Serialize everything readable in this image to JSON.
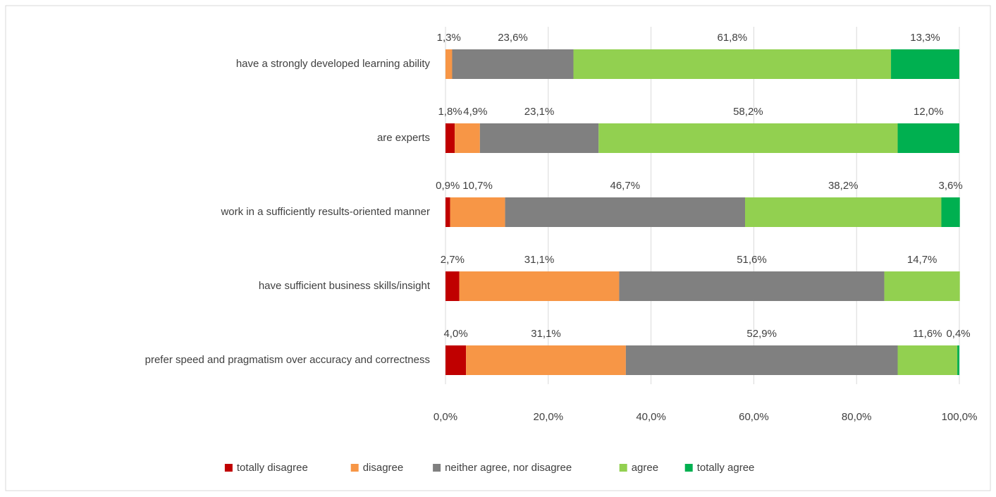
{
  "chart_data": {
    "type": "stacked-bar-horizontal",
    "categories": [
      "have a strongly developed learning ability",
      "are experts",
      "work in a sufficiently results-oriented manner",
      "have sufficient business skills/insight",
      "prefer speed and pragmatism over accuracy and correctness"
    ],
    "series": [
      {
        "name": "totally disagree",
        "color": "#c00000",
        "values": [
          null,
          1.8,
          0.9,
          2.7,
          4.0
        ],
        "value_labels": [
          null,
          "1,8%",
          "0,9%",
          "2,7%",
          "4,0%"
        ]
      },
      {
        "name": "disagree",
        "color": "#f79646",
        "values": [
          1.3,
          4.9,
          10.7,
          31.1,
          31.1
        ],
        "value_labels": [
          "1,3%",
          "4,9%",
          "10,7%",
          "31,1%",
          "31,1%"
        ]
      },
      {
        "name": "neither agree, nor disagree",
        "color": "#808080",
        "values": [
          23.6,
          23.1,
          46.7,
          51.6,
          52.9
        ],
        "value_labels": [
          "23,6%",
          "23,1%",
          "46,7%",
          "51,6%",
          "52,9%"
        ]
      },
      {
        "name": "agree",
        "color": "#92d050",
        "values": [
          61.8,
          58.2,
          38.2,
          14.7,
          11.6
        ],
        "value_labels": [
          "61,8%",
          "58,2%",
          "38,2%",
          "14,7%",
          "11,6%"
        ]
      },
      {
        "name": "totally agree",
        "color": "#00b050",
        "values": [
          13.3,
          12.0,
          3.6,
          null,
          0.4
        ],
        "value_labels": [
          "13,3%",
          "12,0%",
          "3,6%",
          null,
          "0,4%"
        ]
      }
    ],
    "xlim": [
      0,
      100
    ],
    "xticks": [
      {
        "value": 0,
        "label": "0,0%"
      },
      {
        "value": 20,
        "label": "20,0%"
      },
      {
        "value": 40,
        "label": "40,0%"
      },
      {
        "value": 60,
        "label": "60,0%"
      },
      {
        "value": 80,
        "label": "80,0%"
      },
      {
        "value": 100,
        "label": "100,0%"
      }
    ],
    "grid": true,
    "legend": "bottom"
  }
}
